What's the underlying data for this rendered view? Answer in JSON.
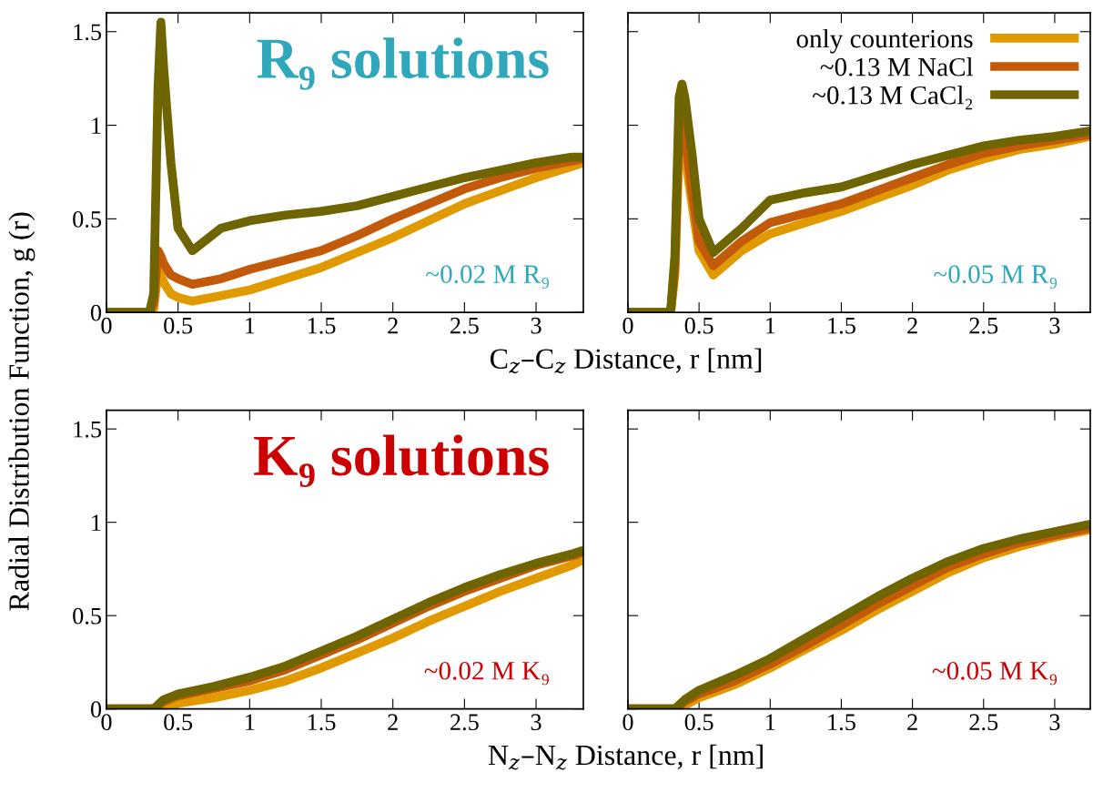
{
  "chart_data": [
    {
      "type": "line",
      "title": "R₉ solutions",
      "ylabel": "Radial Distribution Function, g (r)",
      "xlabel": "C$_{z}$–C$_{z}$ Distance, r [nm]",
      "annotations": [
        "~0.02 M R₉"
      ],
      "xlim": [
        0,
        3.33
      ],
      "ylim": [
        0,
        1.6
      ],
      "xticks": [
        0,
        0.5,
        1,
        1.5,
        2,
        2.5,
        3
      ],
      "yticks": [
        0,
        0.5,
        1,
        1.5
      ],
      "grid": false,
      "line_style": "solid",
      "x": [
        0,
        0.3,
        0.33,
        0.36,
        0.38,
        0.4,
        0.45,
        0.5,
        0.6,
        0.8,
        1.0,
        1.25,
        1.5,
        1.75,
        2.0,
        2.25,
        2.5,
        2.75,
        3.0,
        3.25,
        3.33
      ],
      "series": [
        {
          "color": "#e09a00",
          "values": [
            0,
            0,
            0.02,
            0.22,
            0.2,
            0.16,
            0.1,
            0.08,
            0.06,
            0.09,
            0.12,
            0.18,
            0.24,
            0.32,
            0.4,
            0.49,
            0.58,
            0.65,
            0.72,
            0.78,
            0.8
          ]
        },
        {
          "color": "#c25a0a",
          "values": [
            0,
            0,
            0.05,
            0.33,
            0.3,
            0.26,
            0.2,
            0.18,
            0.15,
            0.18,
            0.23,
            0.28,
            0.33,
            0.41,
            0.5,
            0.58,
            0.66,
            0.72,
            0.77,
            0.81,
            0.82
          ]
        },
        {
          "color": "#6e6400",
          "values": [
            0,
            0,
            0.1,
            1.2,
            1.55,
            1.3,
            0.8,
            0.45,
            0.33,
            0.45,
            0.49,
            0.52,
            0.54,
            0.57,
            0.62,
            0.67,
            0.72,
            0.76,
            0.8,
            0.83,
            0.83
          ]
        }
      ]
    },
    {
      "type": "line",
      "annotations": [
        "~0.05 M R₉"
      ],
      "xlim": [
        0,
        3.25
      ],
      "ylim": [
        0,
        1.6
      ],
      "xticks": [
        0,
        0.5,
        1,
        1.5,
        2,
        2.5,
        3
      ],
      "yticks": [
        0,
        0.5,
        1,
        1.5
      ],
      "tick_labels": "x",
      "grid": false,
      "legend": "top right",
      "line_style": "solid",
      "x": [
        0,
        0.3,
        0.33,
        0.36,
        0.38,
        0.4,
        0.45,
        0.5,
        0.6,
        0.8,
        1.0,
        1.25,
        1.5,
        1.75,
        2.0,
        2.25,
        2.5,
        2.75,
        3.0,
        3.25
      ],
      "series": [
        {
          "name": "only counterions",
          "color": "#e09a00",
          "values": [
            0,
            0,
            0.2,
            0.9,
            0.95,
            0.85,
            0.58,
            0.33,
            0.2,
            0.33,
            0.42,
            0.48,
            0.54,
            0.61,
            0.68,
            0.76,
            0.82,
            0.87,
            0.9,
            0.94
          ]
        },
        {
          "name": "~0.13 M NaCl",
          "color": "#c25a0a",
          "values": [
            0,
            0,
            0.25,
            1.0,
            1.05,
            0.95,
            0.65,
            0.38,
            0.25,
            0.38,
            0.48,
            0.53,
            0.58,
            0.65,
            0.72,
            0.79,
            0.85,
            0.89,
            0.92,
            0.95
          ]
        },
        {
          "name": "~0.13 M CaCl₂",
          "color": "#6e6400",
          "values": [
            0,
            0,
            0.3,
            1.15,
            1.22,
            1.15,
            0.85,
            0.5,
            0.32,
            0.45,
            0.6,
            0.64,
            0.67,
            0.73,
            0.79,
            0.84,
            0.89,
            0.92,
            0.94,
            0.97
          ]
        }
      ]
    },
    {
      "type": "line",
      "title": "K₉ solutions",
      "xlabel": "N$_{z}$–N$_{z}$ Distance, r [nm]",
      "annotations": [
        "~0.02 M K₉"
      ],
      "xlim": [
        0,
        3.33
      ],
      "ylim": [
        0,
        1.6
      ],
      "xticks": [
        0,
        0.5,
        1,
        1.5,
        2,
        2.5,
        3
      ],
      "yticks": [
        0,
        0.5,
        1,
        1.5
      ],
      "grid": false,
      "line_style": "solid",
      "x": [
        0,
        0.33,
        0.4,
        0.5,
        0.75,
        1.0,
        1.25,
        1.5,
        1.75,
        2.0,
        2.25,
        2.5,
        2.75,
        3.0,
        3.25,
        3.33
      ],
      "series": [
        {
          "color": "#e09a00",
          "values": [
            0,
            0,
            0.01,
            0.03,
            0.06,
            0.1,
            0.15,
            0.22,
            0.3,
            0.38,
            0.47,
            0.55,
            0.63,
            0.7,
            0.77,
            0.8
          ]
        },
        {
          "color": "#c25a0a",
          "values": [
            0,
            0,
            0.04,
            0.07,
            0.11,
            0.15,
            0.21,
            0.29,
            0.37,
            0.46,
            0.55,
            0.63,
            0.7,
            0.77,
            0.82,
            0.84
          ]
        },
        {
          "color": "#6e6400",
          "values": [
            0,
            0,
            0.05,
            0.08,
            0.12,
            0.17,
            0.23,
            0.31,
            0.39,
            0.48,
            0.57,
            0.65,
            0.72,
            0.78,
            0.83,
            0.85
          ]
        }
      ]
    },
    {
      "type": "line",
      "annotations": [
        "~0.05 M K₉"
      ],
      "xlim": [
        0,
        3.25
      ],
      "ylim": [
        0,
        1.6
      ],
      "xticks": [
        0,
        0.5,
        1,
        1.5,
        2,
        2.5,
        3
      ],
      "yticks": [
        0,
        0.5,
        1,
        1.5
      ],
      "tick_labels": "x",
      "grid": false,
      "line_style": "solid",
      "x": [
        0,
        0.33,
        0.4,
        0.5,
        0.75,
        1.0,
        1.25,
        1.5,
        1.75,
        2.0,
        2.25,
        2.5,
        2.75,
        3.0,
        3.25
      ],
      "series": [
        {
          "color": "#e09a00",
          "values": [
            0,
            0,
            0.02,
            0.06,
            0.13,
            0.22,
            0.32,
            0.42,
            0.53,
            0.63,
            0.73,
            0.81,
            0.87,
            0.92,
            0.96
          ]
        },
        {
          "color": "#c25a0a",
          "values": [
            0,
            0,
            0.04,
            0.08,
            0.15,
            0.24,
            0.34,
            0.45,
            0.56,
            0.66,
            0.76,
            0.83,
            0.89,
            0.93,
            0.97
          ]
        },
        {
          "color": "#6e6400",
          "values": [
            0,
            0,
            0.05,
            0.1,
            0.18,
            0.27,
            0.38,
            0.49,
            0.6,
            0.7,
            0.79,
            0.86,
            0.91,
            0.95,
            0.99
          ]
        }
      ]
    }
  ]
}
